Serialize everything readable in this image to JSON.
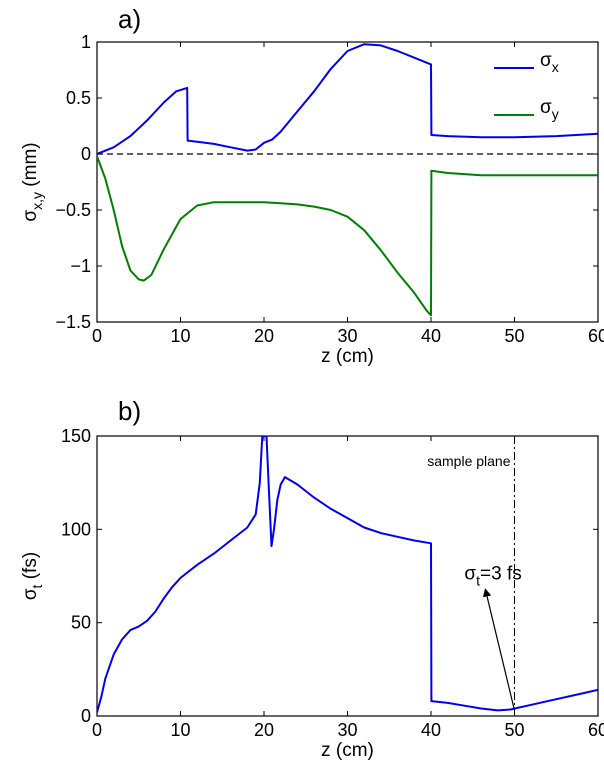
{
  "chart_data": [
    {
      "type": "line",
      "panel_label": "a)",
      "xlabel": "z (cm)",
      "ylabel": {
        "base": "σ",
        "sub": "x,y",
        "unit": " (mm)"
      },
      "xlim": [
        0,
        60
      ],
      "ylim": [
        -1.5,
        1
      ],
      "xticks": [
        0,
        10,
        20,
        30,
        40,
        50,
        60
      ],
      "yticks": [
        -1.5,
        -1,
        -0.5,
        0,
        0.5,
        1
      ],
      "xtick_labels": [
        "0",
        "10",
        "20",
        "30",
        "40",
        "50",
        "60"
      ],
      "ytick_labels": [
        "−1.5",
        "−1",
        "−0.5",
        "0",
        "0.5",
        "1"
      ],
      "grid": false,
      "legend_position": "top-right",
      "reference_line": {
        "y": 0,
        "style": "dashed",
        "color": "#000000"
      },
      "series": [
        {
          "name": "σx",
          "label_base": "σ",
          "label_sub": "x",
          "color": "#0000ee",
          "points": [
            [
              0,
              0
            ],
            [
              2,
              0.06
            ],
            [
              4,
              0.16
            ],
            [
              6,
              0.3
            ],
            [
              8,
              0.46
            ],
            [
              9.5,
              0.56
            ],
            [
              10.8,
              0.59
            ],
            [
              10.85,
              0.12
            ],
            [
              12,
              0.11
            ],
            [
              14,
              0.09
            ],
            [
              16,
              0.06
            ],
            [
              18,
              0.03
            ],
            [
              19,
              0.04
            ],
            [
              20,
              0.1
            ],
            [
              21,
              0.13
            ],
            [
              22,
              0.2
            ],
            [
              24,
              0.38
            ],
            [
              26,
              0.56
            ],
            [
              28,
              0.76
            ],
            [
              30,
              0.92
            ],
            [
              32,
              0.98
            ],
            [
              34,
              0.97
            ],
            [
              36,
              0.92
            ],
            [
              38,
              0.86
            ],
            [
              40,
              0.8
            ],
            [
              40.05,
              0.17
            ],
            [
              42,
              0.16
            ],
            [
              46,
              0.15
            ],
            [
              50,
              0.15
            ],
            [
              55,
              0.16
            ],
            [
              60,
              0.18
            ]
          ]
        },
        {
          "name": "σy",
          "label_base": "σ",
          "label_sub": "y",
          "color": "#008000",
          "points": [
            [
              0,
              -0.02
            ],
            [
              1,
              -0.22
            ],
            [
              2,
              -0.5
            ],
            [
              3,
              -0.82
            ],
            [
              4,
              -1.04
            ],
            [
              5,
              -1.12
            ],
            [
              5.6,
              -1.13
            ],
            [
              6.5,
              -1.08
            ],
            [
              8,
              -0.85
            ],
            [
              10,
              -0.58
            ],
            [
              12,
              -0.46
            ],
            [
              14,
              -0.43
            ],
            [
              16,
              -0.43
            ],
            [
              18,
              -0.43
            ],
            [
              20,
              -0.43
            ],
            [
              22,
              -0.44
            ],
            [
              24,
              -0.45
            ],
            [
              26,
              -0.47
            ],
            [
              28,
              -0.5
            ],
            [
              30,
              -0.56
            ],
            [
              32,
              -0.68
            ],
            [
              34,
              -0.86
            ],
            [
              36,
              -1.06
            ],
            [
              38,
              -1.24
            ],
            [
              39.5,
              -1.4
            ],
            [
              40,
              -1.44
            ],
            [
              40.05,
              -0.15
            ],
            [
              42,
              -0.17
            ],
            [
              46,
              -0.19
            ],
            [
              50,
              -0.19
            ],
            [
              60,
              -0.19
            ]
          ]
        }
      ]
    },
    {
      "type": "line",
      "panel_label": "b)",
      "xlabel": "z (cm)",
      "ylabel": {
        "base": "σ",
        "sub": "t",
        "unit": " (fs)"
      },
      "xlim": [
        0,
        60
      ],
      "ylim": [
        0,
        150
      ],
      "xticks": [
        0,
        10,
        20,
        30,
        40,
        50,
        60
      ],
      "yticks": [
        0,
        50,
        100,
        150
      ],
      "xtick_labels": [
        "0",
        "10",
        "20",
        "30",
        "40",
        "50",
        "60"
      ],
      "ytick_labels": [
        "0",
        "50",
        "100",
        "150"
      ],
      "grid": false,
      "legend_position": "none",
      "vertical_line": {
        "x": 50,
        "style": "dash-dot",
        "color": "#000000",
        "label": "sample plane"
      },
      "annotation": {
        "text_base": "σ",
        "text_sub": "t",
        "text_rest": "=3 fs",
        "text_at": [
          44,
          73
        ],
        "arrow_from": [
          50,
          3
        ],
        "arrow_to": [
          46.5,
          68
        ]
      },
      "series": [
        {
          "name": "",
          "color": "#0000ee",
          "points": [
            [
              0,
              2
            ],
            [
              0.5,
              10
            ],
            [
              1,
              20
            ],
            [
              2,
              33
            ],
            [
              3,
              41
            ],
            [
              4,
              46
            ],
            [
              5,
              48
            ],
            [
              6,
              51
            ],
            [
              7,
              56
            ],
            [
              8,
              63
            ],
            [
              9,
              69
            ],
            [
              10,
              74
            ],
            [
              12,
              81
            ],
            [
              14,
              87
            ],
            [
              16,
              94
            ],
            [
              18,
              101
            ],
            [
              19,
              108
            ],
            [
              19.5,
              125
            ],
            [
              19.8,
              150
            ],
            [
              20.3,
              150
            ],
            [
              20.6,
              120
            ],
            [
              20.9,
              91
            ],
            [
              21.2,
              100
            ],
            [
              21.6,
              116
            ],
            [
              22,
              124
            ],
            [
              22.5,
              128
            ],
            [
              24,
              124
            ],
            [
              26,
              117
            ],
            [
              28,
              111
            ],
            [
              30,
              106
            ],
            [
              32,
              101
            ],
            [
              34,
              98
            ],
            [
              36,
              96
            ],
            [
              38,
              94
            ],
            [
              40,
              92.5
            ],
            [
              40.05,
              8
            ],
            [
              42,
              7
            ],
            [
              44,
              5.5
            ],
            [
              46,
              4
            ],
            [
              48,
              3
            ],
            [
              49.5,
              3.5
            ],
            [
              52,
              6
            ],
            [
              55,
              9
            ],
            [
              58,
              12
            ],
            [
              60,
              14
            ]
          ]
        }
      ]
    }
  ]
}
